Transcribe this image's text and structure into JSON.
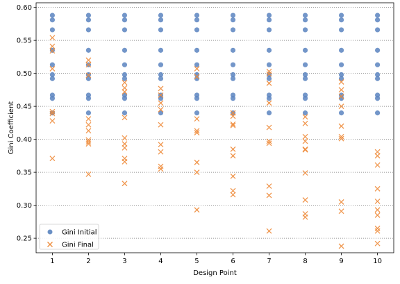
{
  "chart_data": {
    "type": "scatter",
    "xlabel": "Design Point",
    "ylabel": "Gini Coefficient",
    "x_ticks": [
      "1",
      "2",
      "3",
      "4",
      "5",
      "6",
      "7",
      "8",
      "9",
      "10"
    ],
    "y_ticks": [
      "0.25",
      "0.30",
      "0.35",
      "0.40",
      "0.45",
      "0.50",
      "0.55",
      "0.60"
    ],
    "xlim": [
      0.55,
      10.45
    ],
    "ylim": [
      0.228,
      0.607
    ],
    "grid": "horizontal-dotted",
    "legend_position": "bottom-left",
    "series": [
      {
        "name": "Gini Initial",
        "marker": "circle",
        "color": "#5a84bf",
        "points": [
          [
            1,
            0.588
          ],
          [
            1,
            0.581
          ],
          [
            1,
            0.566
          ],
          [
            1,
            0.535
          ],
          [
            1,
            0.513
          ],
          [
            1,
            0.498
          ],
          [
            1,
            0.492
          ],
          [
            1,
            0.467
          ],
          [
            1,
            0.462
          ],
          [
            1,
            0.44
          ],
          [
            2,
            0.588
          ],
          [
            2,
            0.581
          ],
          [
            2,
            0.566
          ],
          [
            2,
            0.535
          ],
          [
            2,
            0.513
          ],
          [
            2,
            0.498
          ],
          [
            2,
            0.492
          ],
          [
            2,
            0.467
          ],
          [
            2,
            0.462
          ],
          [
            2,
            0.44
          ],
          [
            3,
            0.588
          ],
          [
            3,
            0.581
          ],
          [
            3,
            0.566
          ],
          [
            3,
            0.535
          ],
          [
            3,
            0.513
          ],
          [
            3,
            0.498
          ],
          [
            3,
            0.492
          ],
          [
            3,
            0.467
          ],
          [
            3,
            0.462
          ],
          [
            3,
            0.44
          ],
          [
            4,
            0.588
          ],
          [
            4,
            0.581
          ],
          [
            4,
            0.566
          ],
          [
            4,
            0.535
          ],
          [
            4,
            0.513
          ],
          [
            4,
            0.498
          ],
          [
            4,
            0.492
          ],
          [
            4,
            0.467
          ],
          [
            4,
            0.462
          ],
          [
            4,
            0.44
          ],
          [
            5,
            0.588
          ],
          [
            5,
            0.581
          ],
          [
            5,
            0.566
          ],
          [
            5,
            0.535
          ],
          [
            5,
            0.513
          ],
          [
            5,
            0.498
          ],
          [
            5,
            0.492
          ],
          [
            5,
            0.467
          ],
          [
            5,
            0.462
          ],
          [
            5,
            0.44
          ],
          [
            6,
            0.588
          ],
          [
            6,
            0.581
          ],
          [
            6,
            0.566
          ],
          [
            6,
            0.535
          ],
          [
            6,
            0.513
          ],
          [
            6,
            0.498
          ],
          [
            6,
            0.492
          ],
          [
            6,
            0.467
          ],
          [
            6,
            0.462
          ],
          [
            6,
            0.44
          ],
          [
            7,
            0.588
          ],
          [
            7,
            0.581
          ],
          [
            7,
            0.566
          ],
          [
            7,
            0.535
          ],
          [
            7,
            0.513
          ],
          [
            7,
            0.498
          ],
          [
            7,
            0.492
          ],
          [
            7,
            0.467
          ],
          [
            7,
            0.462
          ],
          [
            7,
            0.44
          ],
          [
            8,
            0.588
          ],
          [
            8,
            0.581
          ],
          [
            8,
            0.566
          ],
          [
            8,
            0.535
          ],
          [
            8,
            0.513
          ],
          [
            8,
            0.498
          ],
          [
            8,
            0.492
          ],
          [
            8,
            0.467
          ],
          [
            8,
            0.462
          ],
          [
            8,
            0.44
          ],
          [
            9,
            0.588
          ],
          [
            9,
            0.581
          ],
          [
            9,
            0.566
          ],
          [
            9,
            0.535
          ],
          [
            9,
            0.513
          ],
          [
            9,
            0.498
          ],
          [
            9,
            0.492
          ],
          [
            9,
            0.467
          ],
          [
            9,
            0.462
          ],
          [
            9,
            0.44
          ],
          [
            10,
            0.588
          ],
          [
            10,
            0.581
          ],
          [
            10,
            0.566
          ],
          [
            10,
            0.535
          ],
          [
            10,
            0.513
          ],
          [
            10,
            0.498
          ],
          [
            10,
            0.492
          ],
          [
            10,
            0.467
          ],
          [
            10,
            0.462
          ],
          [
            10,
            0.44
          ]
        ]
      },
      {
        "name": "Gini Final",
        "marker": "x",
        "color": "#ee8c3c",
        "points": [
          [
            1,
            0.554
          ],
          [
            1,
            0.541
          ],
          [
            1,
            0.534
          ],
          [
            1,
            0.507
          ],
          [
            1,
            0.442
          ],
          [
            1,
            0.439
          ],
          [
            1,
            0.428
          ],
          [
            1,
            0.371
          ],
          [
            2,
            0.52
          ],
          [
            2,
            0.513
          ],
          [
            2,
            0.497
          ],
          [
            2,
            0.431
          ],
          [
            2,
            0.422
          ],
          [
            2,
            0.413
          ],
          [
            2,
            0.399
          ],
          [
            2,
            0.396
          ],
          [
            2,
            0.393
          ],
          [
            2,
            0.347
          ],
          [
            3,
            0.486
          ],
          [
            3,
            0.478
          ],
          [
            3,
            0.472
          ],
          [
            3,
            0.433
          ],
          [
            3,
            0.402
          ],
          [
            3,
            0.393
          ],
          [
            3,
            0.387
          ],
          [
            3,
            0.371
          ],
          [
            3,
            0.366
          ],
          [
            3,
            0.333
          ],
          [
            4,
            0.477
          ],
          [
            4,
            0.467
          ],
          [
            4,
            0.455
          ],
          [
            4,
            0.445
          ],
          [
            4,
            0.422
          ],
          [
            4,
            0.392
          ],
          [
            4,
            0.381
          ],
          [
            4,
            0.359
          ],
          [
            4,
            0.355
          ],
          [
            5,
            0.507
          ],
          [
            5,
            0.495
          ],
          [
            5,
            0.431
          ],
          [
            5,
            0.413
          ],
          [
            5,
            0.41
          ],
          [
            5,
            0.365
          ],
          [
            5,
            0.35
          ],
          [
            5,
            0.293
          ],
          [
            6,
            0.44
          ],
          [
            6,
            0.435
          ],
          [
            6,
            0.423
          ],
          [
            6,
            0.421
          ],
          [
            6,
            0.385
          ],
          [
            6,
            0.375
          ],
          [
            6,
            0.344
          ],
          [
            6,
            0.322
          ],
          [
            6,
            0.316
          ],
          [
            7,
            0.503
          ],
          [
            7,
            0.499
          ],
          [
            7,
            0.485
          ],
          [
            7,
            0.455
          ],
          [
            7,
            0.418
          ],
          [
            7,
            0.397
          ],
          [
            7,
            0.394
          ],
          [
            7,
            0.329
          ],
          [
            7,
            0.315
          ],
          [
            7,
            0.261
          ],
          [
            8,
            0.434
          ],
          [
            8,
            0.424
          ],
          [
            8,
            0.404
          ],
          [
            8,
            0.397
          ],
          [
            8,
            0.385
          ],
          [
            8,
            0.384
          ],
          [
            8,
            0.349
          ],
          [
            8,
            0.308
          ],
          [
            8,
            0.287
          ],
          [
            8,
            0.282
          ],
          [
            9,
            0.487
          ],
          [
            9,
            0.475
          ],
          [
            9,
            0.465
          ],
          [
            9,
            0.45
          ],
          [
            9,
            0.42
          ],
          [
            9,
            0.404
          ],
          [
            9,
            0.401
          ],
          [
            9,
            0.305
          ],
          [
            9,
            0.291
          ],
          [
            9,
            0.238
          ],
          [
            10,
            0.381
          ],
          [
            10,
            0.375
          ],
          [
            10,
            0.361
          ],
          [
            10,
            0.325
          ],
          [
            10,
            0.306
          ],
          [
            10,
            0.293
          ],
          [
            10,
            0.285
          ],
          [
            10,
            0.265
          ],
          [
            10,
            0.261
          ],
          [
            10,
            0.242
          ]
        ]
      }
    ]
  }
}
